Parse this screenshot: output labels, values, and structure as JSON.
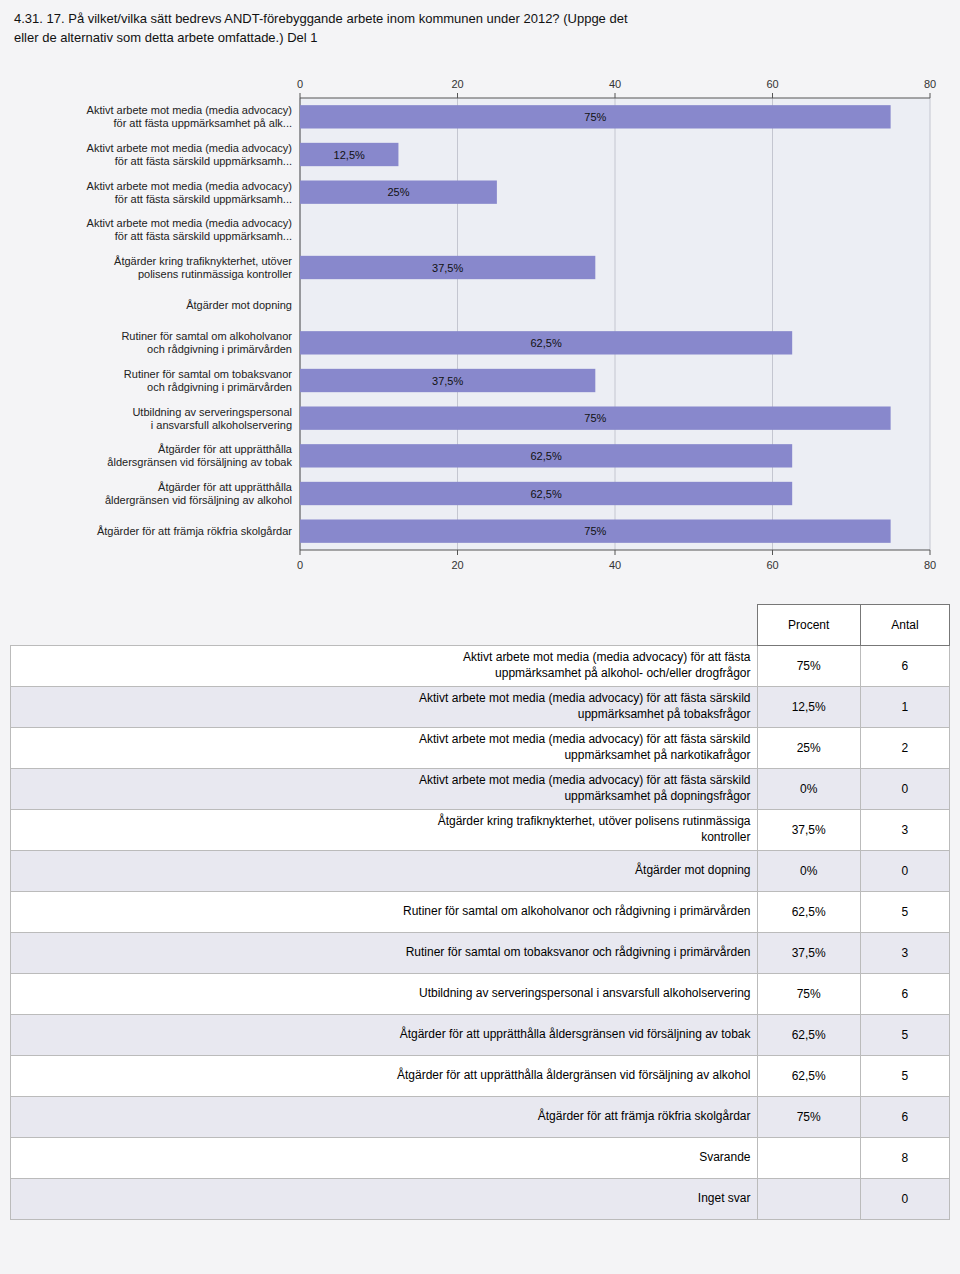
{
  "chart_data": [
    {
      "type": "bar",
      "orientation": "horizontal",
      "title": "4.31. 17. På vilket/vilka sätt bedrevs ANDT-förebyggande arbete inom kommunen under 2012? (Uppge det\neller de alternativ som detta arbete omfattade.) Del 1",
      "categories": [
        "Aktivt arbete mot media (media advocacy)\nför att fästa uppmärksamhet på alk...",
        "Aktivt arbete mot media (media advocacy)\nför att fästa särskild uppmärksamh...",
        "Aktivt arbete mot media (media advocacy)\nför att fästa särskild uppmärksamh...",
        "Aktivt arbete mot media (media advocacy)\nför att fästa särskild uppmärksamh...",
        "Åtgärder kring trafiknykterhet, utöver\npolisens rutinmässiga kontroller",
        "Åtgärder mot dopning",
        "Rutiner för samtal om alkoholvanor\noch rådgivning i primärvården",
        "Rutiner för samtal om tobaksvanor\noch rådgivning i primärvården",
        "Utbildning av serveringspersonal\ni ansvarsfull alkoholservering",
        "Åtgärder för att upprätthålla\nåldersgränsen vid försäljning av tobak",
        "Åtgärder för att upprätthålla\nåldergränsen vid försäljning av alkohol",
        "Åtgärder för att främja rökfria skolgårdar"
      ],
      "values": [
        75,
        12.5,
        25,
        0,
        37.5,
        0,
        62.5,
        37.5,
        75,
        62.5,
        62.5,
        75
      ],
      "value_labels": [
        "75%",
        "12,5%",
        "25%",
        null,
        "37,5%",
        null,
        "62,5%",
        "37,5%",
        "75%",
        "62,5%",
        "62,5%",
        "75%"
      ],
      "data_labels": true,
      "color": "#8888cc",
      "xlim": [
        0,
        80
      ],
      "xticks": [
        0,
        20,
        40,
        60,
        80
      ],
      "grid": true
    },
    {
      "type": "table",
      "categories": [
        "Aktivt arbete mot media (media advocacy) för att fästa\nuppmärksamhet på alkohol- och/eller drogfrågor",
        "Aktivt arbete mot media (media advocacy) för att fästa särskild\nuppmärksamhet på tobaksfrågor",
        "Aktivt arbete mot media (media advocacy) för att fästa särskild\nuppmärksamhet på narkotikafrågor",
        "Aktivt arbete mot media (media advocacy) för att fästa särskild\nuppmärksamhet på dopningsfrågor",
        "Åtgärder kring trafiknykterhet, utöver polisens rutinmässiga\nkontroller",
        "Åtgärder mot dopning",
        "Rutiner för samtal om alkoholvanor och rådgivning i primärvården",
        "Rutiner för samtal om tobaksvanor och rådgivning i primärvården",
        "Utbildning av serveringspersonal i ansvarsfull alkoholservering",
        "Åtgärder för att upprätthålla åldersgränsen vid försäljning av tobak",
        "Åtgärder för att upprätthålla åldergränsen vid försäljning av alkohol",
        "Åtgärder för att främja rökfria skolgårdar",
        "Svarande",
        "Inget svar"
      ],
      "colors": [
        "#ffffff",
        "#e8e8f0",
        "#ffffff",
        "#e8e8f0",
        "#ffffff",
        "#e8e8f0",
        "#ffffff",
        "#e8e8f0",
        "#ffffff",
        "#e8e8f0",
        "#ffffff",
        "#e8e8f0",
        "#ffffff",
        "#e8e8f0"
      ],
      "series": [
        {
          "name": "Procent",
          "values": [
            75,
            12.5,
            25,
            0,
            37.5,
            0,
            62.5,
            37.5,
            75,
            62.5,
            62.5,
            75,
            null,
            null
          ],
          "value_labels": [
            "75%",
            "12,5%",
            "25%",
            "0%",
            "37,5%",
            "0%",
            "62,5%",
            "37,5%",
            "75%",
            "62,5%",
            "62,5%",
            "75%",
            null,
            null
          ]
        },
        {
          "name": "Antal",
          "values": [
            6,
            1,
            2,
            0,
            3,
            0,
            5,
            3,
            6,
            5,
            5,
            6,
            8,
            0
          ]
        }
      ]
    }
  ]
}
